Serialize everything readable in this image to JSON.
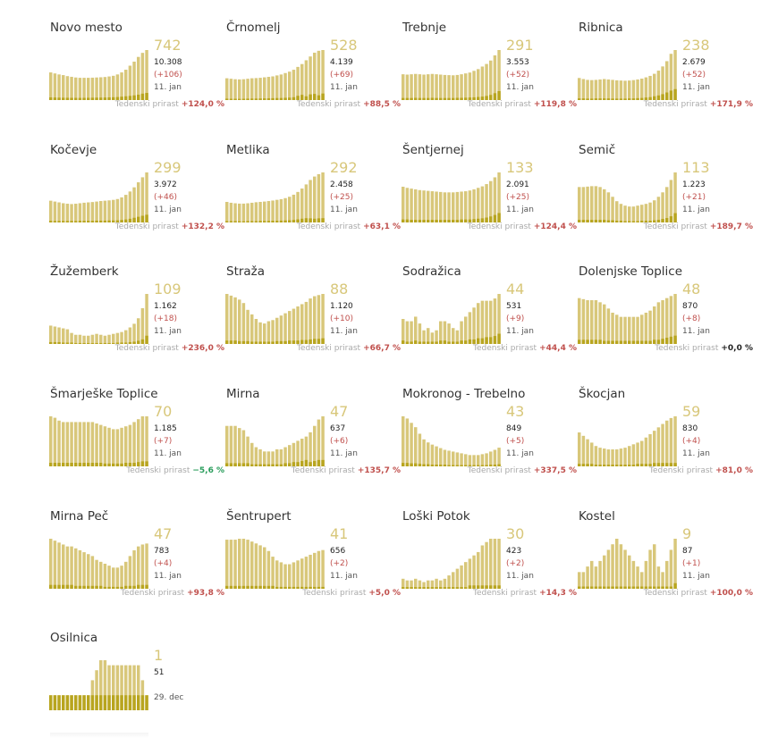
{
  "growth_label": "Tedenski prirast",
  "colors": {
    "bar_total": "#d8c77a",
    "bar_new": "#b8a51f",
    "active_number": "#d8c77a",
    "positive_growth": "#c0504d",
    "negative_growth": "#2a9d5c"
  },
  "chart_data": [
    {
      "type": "bar",
      "title": "Novo mesto",
      "active": "742",
      "total": "10.308",
      "delta": "(+106)",
      "date": "11. jan",
      "growth": "+124,0 %",
      "values": [
        410,
        395,
        380,
        370,
        355,
        345,
        335,
        330,
        330,
        330,
        332,
        335,
        338,
        342,
        350,
        360,
        380,
        410,
        450,
        510,
        570,
        640,
        700,
        742
      ],
      "new_values": [
        40,
        38,
        36,
        35,
        34,
        33,
        33,
        32,
        33,
        34,
        35,
        36,
        37,
        38,
        40,
        42,
        45,
        50,
        56,
        62,
        70,
        80,
        95,
        106
      ]
    },
    {
      "type": "bar",
      "title": "Črnomelj",
      "active": "528",
      "total": "4.139",
      "delta": "(+69)",
      "date": "11. jan",
      "growth": "+88,5 %",
      "values": [
        230,
        225,
        220,
        218,
        220,
        225,
        230,
        232,
        235,
        240,
        245,
        250,
        260,
        270,
        285,
        300,
        320,
        350,
        380,
        420,
        460,
        500,
        520,
        528
      ],
      "new_values": [
        15,
        14,
        14,
        13,
        14,
        15,
        16,
        16,
        17,
        18,
        19,
        20,
        21,
        22,
        24,
        26,
        30,
        45,
        55,
        40,
        60,
        65,
        50,
        69
      ]
    },
    {
      "type": "bar",
      "title": "Trebnje",
      "active": "291",
      "total": "3.553",
      "delta": "(+52)",
      "date": "11. jan",
      "growth": "+119,8 %",
      "values": [
        150,
        148,
        150,
        152,
        150,
        148,
        150,
        152,
        150,
        148,
        146,
        145,
        144,
        146,
        150,
        155,
        160,
        170,
        180,
        195,
        210,
        230,
        260,
        291
      ],
      "new_values": [
        12,
        12,
        12,
        13,
        12,
        12,
        12,
        13,
        12,
        12,
        12,
        12,
        12,
        13,
        13,
        14,
        15,
        16,
        18,
        20,
        24,
        30,
        40,
        52
      ]
    },
    {
      "type": "bar",
      "title": "Ribnica",
      "active": "238",
      "total": "2.679",
      "delta": "(+52)",
      "date": "11. jan",
      "growth": "+171,9 %",
      "values": [
        105,
        100,
        96,
        95,
        96,
        98,
        100,
        98,
        96,
        94,
        93,
        92,
        93,
        95,
        98,
        102,
        108,
        115,
        125,
        140,
        160,
        185,
        220,
        238
      ],
      "new_values": [
        8,
        8,
        7,
        7,
        8,
        8,
        8,
        8,
        7,
        7,
        7,
        7,
        8,
        8,
        9,
        10,
        12,
        14,
        18,
        22,
        28,
        36,
        45,
        52
      ]
    },
    {
      "type": "bar",
      "title": "Kočevje",
      "active": "299",
      "total": "3.972",
      "delta": "(+46)",
      "date": "11. jan",
      "growth": "+132,2 %",
      "values": [
        130,
        125,
        120,
        115,
        112,
        110,
        112,
        115,
        118,
        120,
        122,
        125,
        128,
        130,
        132,
        135,
        140,
        150,
        165,
        185,
        210,
        240,
        270,
        299
      ],
      "new_values": [
        10,
        9,
        9,
        9,
        9,
        9,
        9,
        10,
        10,
        10,
        10,
        11,
        11,
        11,
        12,
        12,
        13,
        15,
        18,
        22,
        28,
        34,
        40,
        46
      ]
    },
    {
      "type": "bar",
      "title": "Metlika",
      "active": "292",
      "total": "2.458",
      "delta": "(+25)",
      "date": "11. jan",
      "growth": "+63,1 %",
      "values": [
        120,
        115,
        112,
        110,
        110,
        112,
        115,
        118,
        120,
        122,
        125,
        128,
        132,
        136,
        142,
        150,
        162,
        178,
        198,
        222,
        248,
        268,
        282,
        292
      ],
      "new_values": [
        8,
        8,
        8,
        7,
        7,
        8,
        8,
        8,
        9,
        9,
        9,
        10,
        10,
        11,
        12,
        13,
        15,
        18,
        22,
        25,
        24,
        22,
        24,
        25
      ]
    },
    {
      "type": "bar",
      "title": "Šentjernej",
      "active": "133",
      "total": "2.091",
      "delta": "(+25)",
      "date": "11. jan",
      "growth": "+124,4 %",
      "values": [
        95,
        92,
        90,
        88,
        86,
        85,
        84,
        83,
        82,
        81,
        80,
        80,
        80,
        81,
        82,
        83,
        85,
        88,
        92,
        96,
        102,
        110,
        120,
        133
      ],
      "new_values": [
        8,
        8,
        7,
        7,
        7,
        7,
        7,
        7,
        7,
        7,
        7,
        7,
        7,
        7,
        8,
        8,
        8,
        9,
        10,
        11,
        13,
        16,
        20,
        25
      ]
    },
    {
      "type": "bar",
      "title": "Semič",
      "active": "113",
      "total": "1.223",
      "delta": "(+21)",
      "date": "11. jan",
      "growth": "+189,7 %",
      "values": [
        80,
        80,
        81,
        82,
        82,
        80,
        75,
        68,
        58,
        48,
        42,
        38,
        36,
        36,
        38,
        40,
        42,
        45,
        50,
        58,
        68,
        80,
        96,
        113
      ],
      "new_values": [
        6,
        6,
        6,
        6,
        6,
        6,
        6,
        5,
        5,
        4,
        4,
        3,
        3,
        3,
        3,
        4,
        4,
        4,
        5,
        6,
        8,
        10,
        14,
        21
      ]
    },
    {
      "type": "bar",
      "title": "Žužemberk",
      "active": "109",
      "total": "1.162",
      "delta": "(+18)",
      "date": "11. jan",
      "growth": "+236,0 %",
      "values": [
        40,
        38,
        36,
        34,
        32,
        24,
        20,
        20,
        18,
        18,
        20,
        22,
        20,
        18,
        20,
        22,
        24,
        26,
        30,
        36,
        44,
        56,
        78,
        109
      ],
      "new_values": [
        4,
        4,
        4,
        3,
        3,
        3,
        2,
        2,
        2,
        2,
        2,
        2,
        2,
        2,
        2,
        2,
        3,
        3,
        3,
        4,
        5,
        7,
        10,
        18
      ]
    },
    {
      "type": "bar",
      "title": "Straža",
      "active": "88",
      "total": "1.120",
      "delta": "(+10)",
      "date": "11. jan",
      "growth": "+66,7 %",
      "values": [
        88,
        85,
        82,
        78,
        72,
        60,
        52,
        44,
        38,
        36,
        40,
        42,
        46,
        50,
        54,
        58,
        62,
        66,
        70,
        74,
        80,
        84,
        86,
        88
      ],
      "new_values": [
        6,
        6,
        6,
        5,
        5,
        5,
        4,
        4,
        4,
        4,
        4,
        4,
        5,
        5,
        5,
        6,
        6,
        6,
        7,
        7,
        8,
        9,
        9,
        10
      ]
    },
    {
      "type": "bar",
      "title": "Sodražica",
      "active": "44",
      "total": "531",
      "delta": "(+9)",
      "date": "11. jan",
      "growth": "+44,4 %",
      "values": [
        22,
        20,
        20,
        24,
        18,
        12,
        14,
        10,
        12,
        20,
        20,
        18,
        14,
        12,
        20,
        24,
        28,
        32,
        36,
        38,
        38,
        38,
        40,
        44
      ],
      "new_values": [
        3,
        2,
        2,
        3,
        2,
        2,
        2,
        2,
        2,
        3,
        3,
        2,
        2,
        2,
        3,
        3,
        4,
        4,
        5,
        5,
        6,
        6,
        7,
        9
      ]
    },
    {
      "type": "bar",
      "title": "Dolenjske Toplice",
      "active": "48",
      "total": "870",
      "delta": "(+8)",
      "date": "11. jan",
      "growth": "+0,0 %",
      "values": [
        44,
        43,
        42,
        42,
        42,
        40,
        38,
        34,
        30,
        28,
        26,
        26,
        26,
        26,
        26,
        28,
        30,
        32,
        36,
        40,
        42,
        44,
        46,
        48
      ],
      "new_values": [
        4,
        4,
        4,
        4,
        4,
        4,
        3,
        3,
        3,
        3,
        3,
        3,
        3,
        3,
        3,
        3,
        3,
        3,
        4,
        4,
        5,
        6,
        7,
        8
      ]
    },
    {
      "type": "bar",
      "title": "Šmarješke Toplice",
      "active": "70",
      "total": "1.185",
      "delta": "(+7)",
      "date": "11. jan",
      "growth": "−5,6 %",
      "values": [
        70,
        68,
        64,
        62,
        62,
        62,
        62,
        62,
        62,
        62,
        62,
        60,
        58,
        56,
        54,
        52,
        52,
        54,
        56,
        58,
        62,
        66,
        70,
        70
      ],
      "new_values": [
        5,
        5,
        5,
        5,
        5,
        5,
        5,
        5,
        5,
        5,
        5,
        5,
        5,
        4,
        4,
        4,
        4,
        4,
        5,
        5,
        5,
        6,
        7,
        7
      ]
    },
    {
      "type": "bar",
      "title": "Mirna",
      "active": "47",
      "total": "637",
      "delta": "(+6)",
      "date": "11. jan",
      "growth": "+135,7 %",
      "values": [
        38,
        38,
        38,
        36,
        34,
        28,
        22,
        18,
        16,
        14,
        14,
        14,
        16,
        16,
        18,
        20,
        22,
        24,
        26,
        28,
        32,
        38,
        44,
        47
      ],
      "new_values": [
        3,
        3,
        3,
        3,
        3,
        3,
        2,
        2,
        2,
        2,
        2,
        2,
        2,
        2,
        3,
        3,
        4,
        4,
        5,
        6,
        4,
        5,
        6,
        6
      ]
    },
    {
      "type": "bar",
      "title": "Mokronog - Trebelno",
      "active": "43",
      "total": "849",
      "delta": "(+5)",
      "date": "11. jan",
      "growth": "+337,5 %",
      "values": [
        115,
        110,
        100,
        90,
        75,
        62,
        55,
        50,
        46,
        42,
        38,
        36,
        34,
        32,
        30,
        28,
        26,
        26,
        26,
        28,
        30,
        34,
        38,
        43
      ],
      "new_values": [
        8,
        8,
        7,
        7,
        6,
        5,
        5,
        4,
        4,
        4,
        4,
        3,
        3,
        3,
        3,
        3,
        3,
        3,
        3,
        3,
        3,
        4,
        4,
        5
      ]
    },
    {
      "type": "bar",
      "title": "Škocjan",
      "active": "59",
      "total": "830",
      "delta": "(+4)",
      "date": "11. jan",
      "growth": "+81,0 %",
      "values": [
        40,
        36,
        32,
        28,
        24,
        22,
        21,
        20,
        20,
        20,
        21,
        22,
        24,
        26,
        28,
        30,
        34,
        38,
        42,
        46,
        50,
        54,
        57,
        59
      ],
      "new_values": [
        3,
        3,
        3,
        3,
        2,
        2,
        2,
        2,
        2,
        2,
        2,
        2,
        2,
        2,
        3,
        3,
        3,
        3,
        4,
        4,
        4,
        4,
        4,
        4
      ]
    },
    {
      "type": "bar",
      "title": "Mirna Peč",
      "active": "47",
      "total": "783",
      "delta": "(+4)",
      "date": "11. jan",
      "growth": "+93,8 %",
      "values": [
        52,
        50,
        48,
        46,
        44,
        44,
        42,
        40,
        38,
        36,
        34,
        30,
        28,
        26,
        24,
        22,
        22,
        24,
        28,
        34,
        40,
        44,
        46,
        47
      ],
      "new_values": [
        4,
        4,
        4,
        4,
        4,
        4,
        3,
        3,
        3,
        3,
        3,
        3,
        3,
        2,
        2,
        2,
        2,
        2,
        3,
        3,
        3,
        4,
        4,
        4
      ]
    },
    {
      "type": "bar",
      "title": "Šentrupert",
      "active": "41",
      "total": "656",
      "delta": "(+2)",
      "date": "11. jan",
      "growth": "+5,0 %",
      "values": [
        52,
        52,
        52,
        53,
        53,
        52,
        50,
        48,
        46,
        44,
        40,
        34,
        30,
        28,
        26,
        26,
        28,
        30,
        32,
        34,
        36,
        38,
        40,
        41
      ],
      "new_values": [
        3,
        3,
        3,
        3,
        3,
        3,
        3,
        3,
        3,
        3,
        3,
        3,
        2,
        2,
        2,
        2,
        2,
        2,
        2,
        2,
        2,
        2,
        2,
        2
      ]
    },
    {
      "type": "bar",
      "title": "Loški Potok",
      "active": "30",
      "total": "423",
      "delta": "(+2)",
      "date": "11. jan",
      "growth": "+14,3 %",
      "values": [
        6,
        5,
        5,
        6,
        5,
        4,
        5,
        5,
        6,
        5,
        6,
        8,
        10,
        12,
        14,
        16,
        18,
        20,
        22,
        26,
        28,
        30,
        30,
        30
      ],
      "new_values": [
        1,
        1,
        1,
        1,
        1,
        1,
        1,
        1,
        1,
        1,
        1,
        1,
        1,
        1,
        1,
        1,
        2,
        2,
        2,
        2,
        2,
        2,
        2,
        2
      ]
    },
    {
      "type": "bar",
      "title": "Kostel",
      "active": "9",
      "total": "87",
      "delta": "(+1)",
      "date": "11. jan",
      "growth": "+100,0 %",
      "values": [
        3,
        3,
        4,
        5,
        4,
        5,
        6,
        7,
        8,
        9,
        8,
        7,
        6,
        5,
        4,
        3,
        5,
        7,
        8,
        4,
        3,
        5,
        7,
        9
      ],
      "new_values": [
        0.4,
        0.4,
        0.4,
        0.4,
        0.4,
        0.4,
        0.4,
        0.4,
        0.4,
        0.4,
        0.4,
        0.4,
        0.4,
        0.4,
        0.4,
        0.4,
        0.4,
        0.4,
        0.4,
        0.4,
        0.4,
        0.4,
        0.4,
        1
      ]
    },
    {
      "type": "bar",
      "title": "Osilnica",
      "active": "1",
      "total": "51",
      "delta": "",
      "date": "29. dec",
      "growth": "",
      "values": [
        0.3,
        0.3,
        0.3,
        0.3,
        0.3,
        0.3,
        0.3,
        0.3,
        0.3,
        0.3,
        0.6,
        0.8,
        1,
        1,
        0.9,
        0.9,
        0.9,
        0.9,
        0.9,
        0.9,
        0.9,
        0.9,
        0.6,
        0.3
      ],
      "new_values": [
        0.3,
        0.3,
        0.3,
        0.3,
        0.3,
        0.3,
        0.3,
        0.3,
        0.3,
        0.3,
        0.3,
        0.3,
        0.3,
        0.3,
        0.3,
        0.3,
        0.3,
        0.3,
        0.3,
        0.3,
        0.3,
        0.3,
        0.3,
        0.3
      ]
    }
  ]
}
